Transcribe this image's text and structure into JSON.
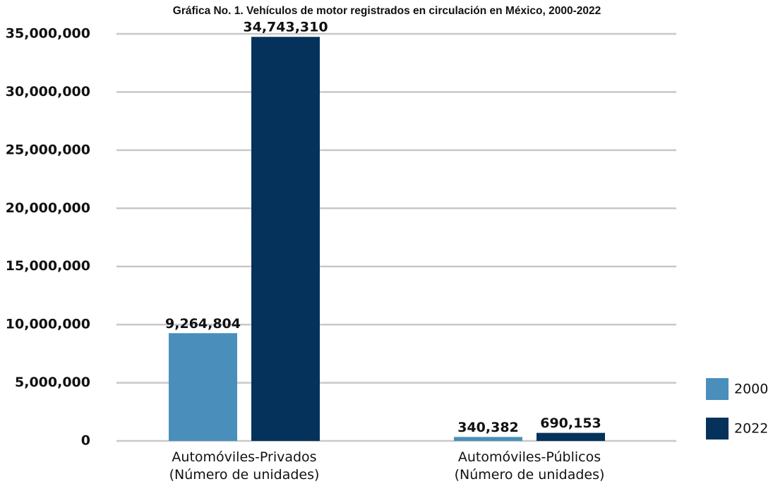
{
  "chart_data": {
    "type": "bar",
    "title": "Gráfica No. 1. Vehículos de motor registrados en circulación en México, 2000-2022",
    "categories": [
      "Automóviles-Privados\n(Número de unidades)",
      "Automóviles-Públicos\n(Número de unidades)"
    ],
    "series": [
      {
        "name": "2000",
        "color": "#4a8fbb",
        "values": [
          9264804,
          340382
        ],
        "value_labels": [
          "9,264,804",
          "340,382"
        ]
      },
      {
        "name": "2022",
        "color": "#04325b",
        "values": [
          34743310,
          690153
        ],
        "value_labels": [
          "34,743,310",
          "690,153"
        ]
      }
    ],
    "ylim": [
      0,
      35000000
    ],
    "yticks": [
      0,
      {
        "value": 5000000,
        "label": "5,000,000"
      },
      {
        "value": 10000000,
        "label": "10,000,000"
      },
      {
        "value": 15000000,
        "label": "15,000,000"
      },
      {
        "value": 20000000,
        "label": "20,000,000"
      },
      {
        "value": 25000000,
        "label": "25,000,000"
      },
      {
        "value": 30000000,
        "label": "30,000,000"
      },
      {
        "value": 35000000,
        "label": "35,000,000"
      }
    ],
    "grid": true,
    "legend": "right"
  }
}
